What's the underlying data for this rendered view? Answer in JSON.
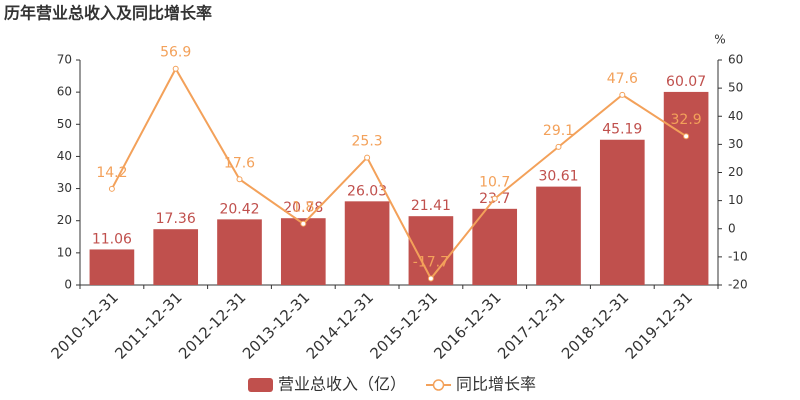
{
  "chart_data": {
    "type": "bar",
    "title": "历年营业总收入及同比增长率",
    "categories": [
      "2010-12-31",
      "2011-12-31",
      "2012-12-31",
      "2013-12-31",
      "2014-12-31",
      "2015-12-31",
      "2016-12-31",
      "2017-12-31",
      "2018-12-31",
      "2019-12-31"
    ],
    "series": [
      {
        "name": "营业总收入（亿）",
        "type": "bar",
        "color": "#c0504d",
        "values": [
          11.06,
          17.36,
          20.42,
          20.78,
          26.03,
          21.41,
          23.7,
          30.61,
          45.19,
          60.07
        ]
      },
      {
        "name": "同比增长率",
        "type": "line",
        "axis": "y2",
        "color": "#f3a15a",
        "values": [
          14.2,
          56.9,
          17.6,
          1.8,
          25.3,
          -17.7,
          10.7,
          29.1,
          47.6,
          32.9
        ]
      }
    ],
    "ylim": [
      0,
      70
    ],
    "yticks": [
      0,
      10,
      20,
      30,
      40,
      50,
      60,
      70
    ],
    "y2lim": [
      -20,
      60
    ],
    "y2ticks": [
      -20,
      -10,
      0,
      10,
      20,
      30,
      40,
      50,
      60
    ],
    "y2_label": "%",
    "grid": false,
    "legend": "bottom"
  }
}
